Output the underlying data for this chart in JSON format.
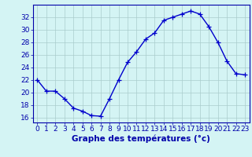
{
  "hours": [
    0,
    1,
    2,
    3,
    4,
    5,
    6,
    7,
    8,
    9,
    10,
    11,
    12,
    13,
    14,
    15,
    16,
    17,
    18,
    19,
    20,
    21,
    22,
    23
  ],
  "temps": [
    22.0,
    20.2,
    20.2,
    19.0,
    17.5,
    17.0,
    16.3,
    16.2,
    19.0,
    22.0,
    24.8,
    26.5,
    28.5,
    29.5,
    31.5,
    32.0,
    32.5,
    33.0,
    32.5,
    30.5,
    28.0,
    25.0,
    23.0,
    22.8
  ],
  "line_color": "#0000cc",
  "marker": "+",
  "markersize": 4,
  "linewidth": 1.0,
  "bg_color": "#d4f4f4",
  "grid_color": "#aacccc",
  "axes_color": "#0000aa",
  "xlabel": "Graphe des températures (°c)",
  "ylabel_ticks": [
    16,
    18,
    20,
    22,
    24,
    26,
    28,
    30,
    32
  ],
  "ylim": [
    15.2,
    34.0
  ],
  "xlim": [
    -0.5,
    23.5
  ],
  "tick_fontsize": 6.5,
  "label_fontsize": 7.5
}
